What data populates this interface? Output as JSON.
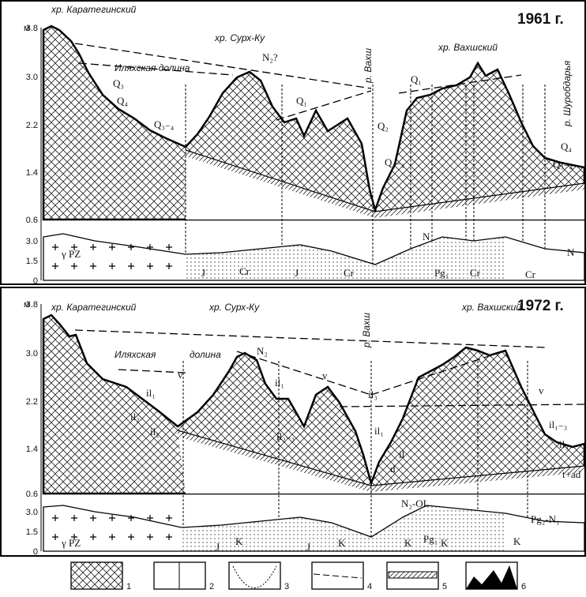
{
  "panels": [
    {
      "year": "1961 г.",
      "unit": "м",
      "yticks": [
        "3.8",
        "3.0",
        "2.2",
        "1.4",
        "0.6"
      ],
      "section_ticks": [
        "3.0",
        "1.5",
        "0"
      ],
      "labels": [
        "хр. Каратегинский",
        "хр. Сурх-Ку",
        "N₂?",
        "Иляхская долина",
        "Q₃",
        "Q₄",
        "Q₃₋₄",
        "Q₁",
        "р. Вахш",
        "Q₂",
        "Q₃₋₄",
        "хр. Вахшский",
        "Q₁",
        "р. Шуробдарья",
        "Q₄",
        "Q₃₋₄"
      ],
      "section_labels": [
        "γ PZ",
        "J",
        "Cr",
        "J",
        "Cr",
        "N",
        "Pg₁",
        "Cr",
        "Cr",
        "N"
      ]
    },
    {
      "year": "1972 г.",
      "unit": "м",
      "yticks": [
        "3.8",
        "3.0",
        "2.2",
        "1.4",
        "0.6"
      ],
      "section_ticks": [
        "3.0",
        "1.5",
        "0"
      ],
      "labels": [
        "хр. Каратегинский",
        "хр. Сурх-Ку",
        "хр. Вахшский",
        "Иляхская",
        "долина",
        "р. Вахш",
        "N₂",
        "v",
        "il₁",
        "il₁",
        "v",
        "il₃",
        "il₂",
        "il₂",
        "il₂₋₃",
        "il₁",
        "il",
        "d",
        "v",
        "il₁₋₃",
        "il₃",
        "t+ad"
      ],
      "section_labels": [
        "γ PZ",
        "J",
        "K",
        "J",
        "K",
        "N₂-OL",
        "K",
        "Pg₁",
        "K",
        "K",
        "Pg₂-N₁"
      ]
    }
  ],
  "legend": [
    "1",
    "2",
    "3",
    "4",
    "5",
    "6"
  ]
}
